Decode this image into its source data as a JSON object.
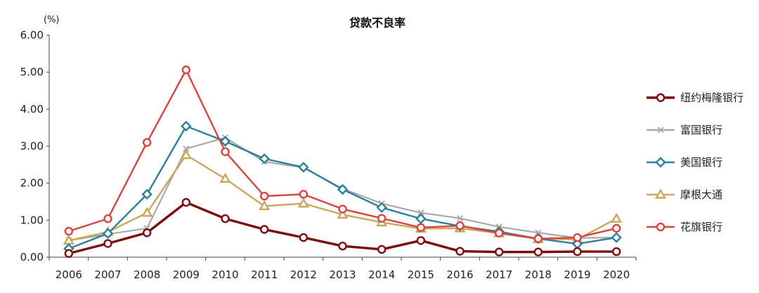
{
  "chart_data": {
    "type": "line",
    "title": "贷款不良率",
    "ylabel": "(%)",
    "xlabel": "",
    "ylim": [
      0,
      6
    ],
    "yticks": [
      "0.00",
      "1.00",
      "2.00",
      "3.00",
      "4.00",
      "5.00",
      "6.00"
    ],
    "grid": false,
    "legend_position": "right",
    "x": [
      "2006",
      "2007",
      "2008",
      "2009",
      "2010",
      "2011",
      "2012",
      "2013",
      "2014",
      "2015",
      "2016",
      "2017",
      "2018",
      "2019",
      "2020"
    ],
    "series": [
      {
        "name": "纽约梅隆银行",
        "color": "#7b0c0c",
        "marker": "circle",
        "values": [
          0.1,
          0.37,
          0.66,
          1.48,
          1.04,
          0.75,
          0.53,
          0.3,
          0.21,
          0.45,
          0.16,
          0.14,
          0.14,
          0.15,
          0.15
        ]
      },
      {
        "name": "富国银行",
        "color": "#a9a9a9",
        "marker": "x",
        "values": [
          0.45,
          0.62,
          0.78,
          2.93,
          3.23,
          2.58,
          2.42,
          1.85,
          1.45,
          1.2,
          1.05,
          0.82,
          0.66,
          0.52,
          0.53
        ]
      },
      {
        "name": "美国银行",
        "color": "#2f7f98",
        "marker": "diamond",
        "values": [
          0.23,
          0.64,
          1.7,
          3.54,
          3.13,
          2.66,
          2.43,
          1.83,
          1.34,
          1.04,
          0.84,
          0.69,
          0.5,
          0.36,
          0.53
        ]
      },
      {
        "name": "摩根大通",
        "color": "#c9a85c",
        "marker": "triangle",
        "values": [
          0.45,
          0.68,
          1.2,
          2.76,
          2.12,
          1.38,
          1.45,
          1.15,
          0.94,
          0.77,
          0.78,
          0.65,
          0.49,
          0.48,
          1.04
        ]
      },
      {
        "name": "花旗银行",
        "color": "#d64541",
        "marker": "circle",
        "values": [
          0.7,
          1.04,
          3.1,
          5.06,
          2.85,
          1.65,
          1.7,
          1.3,
          1.05,
          0.8,
          0.85,
          0.65,
          0.5,
          0.53,
          0.78
        ]
      }
    ]
  }
}
